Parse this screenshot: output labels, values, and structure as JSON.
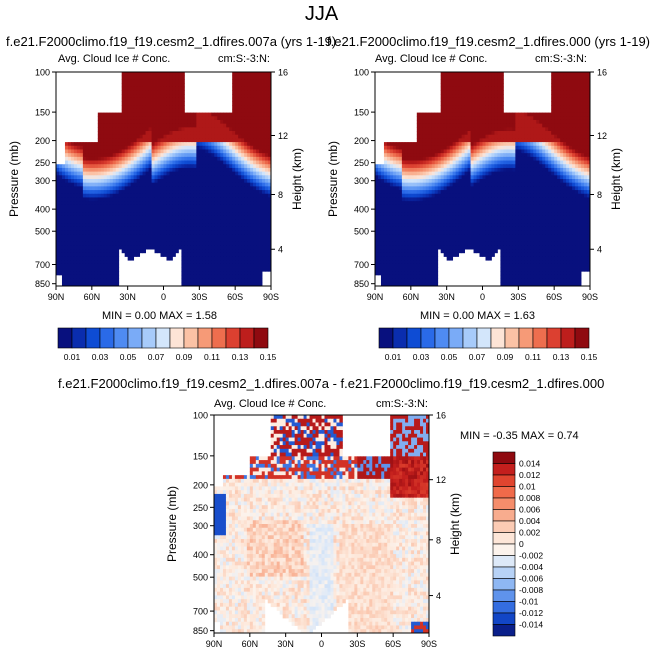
{
  "figure": {
    "suptitle": "JJA",
    "stats_template": "MIN =  {min}  MAX =  {max}"
  },
  "chart_data": [
    {
      "type": "heatmap",
      "title": "f.e21.F2000climo.f19_f19.cesm2_1.dfires.007a (yrs 1-19)",
      "subtitle_left": "Avg. Cloud Ice # Conc.",
      "subtitle_right": "cm:S:-3:N:",
      "ylabel": "Pressure (mb)",
      "ylabel_right": "Height (km)",
      "x_ticks": [
        "90N",
        "60N",
        "30N",
        "0",
        "30S",
        "60S",
        "90S"
      ],
      "y_ticks": [
        "100",
        "150",
        "200",
        "250",
        "300",
        "400",
        "500",
        "700",
        "850"
      ],
      "y_ticks_right": [
        "16",
        "12",
        "8",
        "4"
      ],
      "xlim": [
        90,
        -90
      ],
      "ylim": [
        100,
        850
      ],
      "min": "0.00",
      "max": "1.58",
      "colorbar": {
        "levels": [
          "0.01",
          "0.03",
          "0.05",
          "0.07",
          "0.09",
          "0.11",
          "0.13",
          "0.15"
        ],
        "colors": [
          "#08107e",
          "#0a2dae",
          "#0e4cd4",
          "#2a6ae8",
          "#4f8bf2",
          "#7aabf7",
          "#a7cbfa",
          "#d3e6fb",
          "#fde4d6",
          "#fbc2a5",
          "#f69a77",
          "#ee6e4e",
          "#dc4030",
          "#bd1e1c",
          "#8f0a10"
        ]
      }
    },
    {
      "type": "heatmap",
      "title": "f.e21.F2000climo.f19_f19.cesm2_1.dfires.000 (yrs 1-19)",
      "subtitle_left": "Avg. Cloud Ice # Conc.",
      "subtitle_right": "cm:S:-3:N:",
      "ylabel": "Pressure (mb)",
      "ylabel_right": "Height (km)",
      "x_ticks": [
        "90N",
        "60N",
        "30N",
        "0",
        "30S",
        "60S",
        "90S"
      ],
      "y_ticks": [
        "100",
        "150",
        "200",
        "250",
        "300",
        "400",
        "500",
        "700",
        "850"
      ],
      "y_ticks_right": [
        "16",
        "12",
        "8",
        "4"
      ],
      "xlim": [
        90,
        -90
      ],
      "ylim": [
        100,
        850
      ],
      "min": "0.00",
      "max": "1.63",
      "colorbar": {
        "levels": [
          "0.01",
          "0.03",
          "0.05",
          "0.07",
          "0.09",
          "0.11",
          "0.13",
          "0.15"
        ],
        "colors": [
          "#08107e",
          "#0a2dae",
          "#0e4cd4",
          "#2a6ae8",
          "#4f8bf2",
          "#7aabf7",
          "#a7cbfa",
          "#d3e6fb",
          "#fde4d6",
          "#fbc2a5",
          "#f69a77",
          "#ee6e4e",
          "#dc4030",
          "#bd1e1c",
          "#8f0a10"
        ]
      }
    },
    {
      "type": "heatmap",
      "title": "f.e21.F2000climo.f19_f19.cesm2_1.dfires.007a - f.e21.F2000climo.f19_f19.cesm2_1.dfires.000",
      "subtitle_left": "Avg. Cloud Ice # Conc.",
      "subtitle_right": "cm:S:-3:N:",
      "ylabel": "Pressure (mb)",
      "ylabel_right": "Height (km)",
      "x_ticks": [
        "90N",
        "60N",
        "30N",
        "0",
        "30S",
        "60S",
        "90S"
      ],
      "y_ticks": [
        "100",
        "150",
        "200",
        "250",
        "300",
        "400",
        "500",
        "700",
        "850"
      ],
      "y_ticks_right": [
        "16",
        "12",
        "8",
        "4"
      ],
      "xlim": [
        90,
        -90
      ],
      "ylim": [
        100,
        850
      ],
      "min": "-0.35",
      "max": "0.74",
      "colorbar": {
        "levels": [
          "0.014",
          "0.012",
          "0.01",
          "0.008",
          "0.006",
          "0.004",
          "0.002",
          "0",
          "-0.002",
          "-0.004",
          "-0.006",
          "-0.008",
          "-0.01",
          "-0.012",
          "-0.014"
        ],
        "colors": [
          "#8f0a10",
          "#c41f1d",
          "#e0452f",
          "#f06a4a",
          "#f58d6b",
          "#f8ac8e",
          "#fbcbb4",
          "#fde6d8",
          "#fcf3ec",
          "#dde9f8",
          "#b7d2f6",
          "#8eb7f3",
          "#5f93ec",
          "#346de0",
          "#1246c6",
          "#0a1f8a"
        ]
      }
    }
  ]
}
